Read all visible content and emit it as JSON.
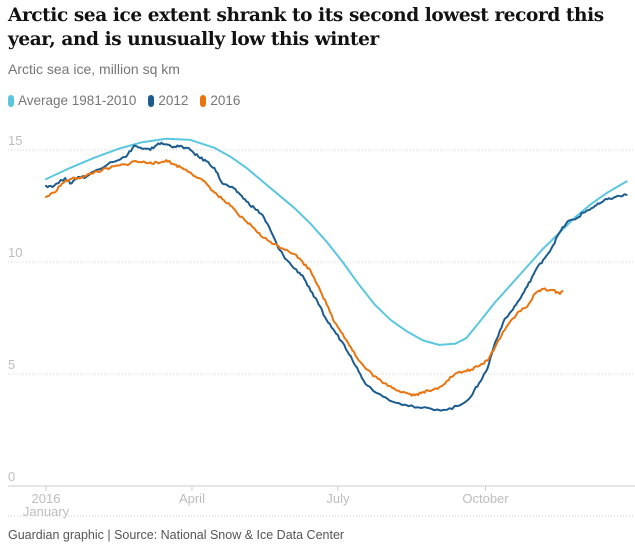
{
  "chart_data": {
    "type": "line",
    "title": "Arctic sea ice extent shrank to its second lowest record this year, and is unusually low this winter",
    "subtitle": "Arctic sea ice, million sq km",
    "xlabel": "",
    "ylabel": "Arctic sea ice, million sq km",
    "x_unit": "day of year",
    "xlim": [
      0,
      366
    ],
    "ylim": [
      0,
      15.5
    ],
    "y_ticks": [
      {
        "value": 0,
        "label": "0"
      },
      {
        "value": 5,
        "label": "5"
      },
      {
        "value": 10,
        "label": "10"
      },
      {
        "value": 15,
        "label": "15"
      }
    ],
    "x_ticks": [
      {
        "value": 0,
        "label": "2016",
        "sublabel": "January"
      },
      {
        "value": 91,
        "label": "April",
        "sublabel": ""
      },
      {
        "value": 182,
        "label": "July",
        "sublabel": ""
      },
      {
        "value": 274,
        "label": "October",
        "sublabel": ""
      }
    ],
    "grid": true,
    "legend_position": "top-left",
    "series": [
      {
        "name": "Average 1981-2010",
        "color": "#5bc6e0",
        "points": [
          [
            0,
            13.7
          ],
          [
            15,
            14.2
          ],
          [
            30,
            14.65
          ],
          [
            45,
            15.05
          ],
          [
            60,
            15.35
          ],
          [
            75,
            15.5
          ],
          [
            90,
            15.45
          ],
          [
            105,
            15.1
          ],
          [
            115,
            14.7
          ],
          [
            125,
            14.2
          ],
          [
            135,
            13.6
          ],
          [
            145,
            13.0
          ],
          [
            155,
            12.4
          ],
          [
            165,
            11.7
          ],
          [
            175,
            10.9
          ],
          [
            185,
            10.0
          ],
          [
            195,
            9.0
          ],
          [
            205,
            8.1
          ],
          [
            215,
            7.4
          ],
          [
            225,
            6.9
          ],
          [
            235,
            6.5
          ],
          [
            245,
            6.3
          ],
          [
            255,
            6.35
          ],
          [
            262,
            6.6
          ],
          [
            270,
            7.3
          ],
          [
            280,
            8.2
          ],
          [
            290,
            9.0
          ],
          [
            300,
            9.8
          ],
          [
            310,
            10.6
          ],
          [
            320,
            11.3
          ],
          [
            330,
            12.0
          ],
          [
            340,
            12.6
          ],
          [
            350,
            13.1
          ],
          [
            362,
            13.6
          ]
        ]
      },
      {
        "name": "2012",
        "color": "#1c5c8e",
        "points": [
          [
            0,
            13.4
          ],
          [
            5,
            13.4
          ],
          [
            12,
            13.75
          ],
          [
            15,
            13.5
          ],
          [
            20,
            13.8
          ],
          [
            25,
            13.8
          ],
          [
            30,
            14.05
          ],
          [
            40,
            14.45
          ],
          [
            50,
            14.7
          ],
          [
            55,
            15.2
          ],
          [
            60,
            15.05
          ],
          [
            65,
            15.0
          ],
          [
            70,
            15.3
          ],
          [
            75,
            15.25
          ],
          [
            80,
            15.15
          ],
          [
            85,
            15.15
          ],
          [
            90,
            15.0
          ],
          [
            95,
            14.7
          ],
          [
            100,
            14.5
          ],
          [
            105,
            14.2
          ],
          [
            110,
            13.5
          ],
          [
            115,
            13.35
          ],
          [
            120,
            13.1
          ],
          [
            125,
            12.7
          ],
          [
            130,
            12.4
          ],
          [
            135,
            12.1
          ],
          [
            140,
            11.4
          ],
          [
            145,
            10.6
          ],
          [
            150,
            10.1
          ],
          [
            155,
            9.7
          ],
          [
            160,
            9.4
          ],
          [
            165,
            8.7
          ],
          [
            170,
            8.1
          ],
          [
            175,
            7.4
          ],
          [
            180,
            6.9
          ],
          [
            185,
            6.4
          ],
          [
            190,
            5.8
          ],
          [
            195,
            5.1
          ],
          [
            200,
            4.5
          ],
          [
            210,
            4.0
          ],
          [
            220,
            3.7
          ],
          [
            230,
            3.5
          ],
          [
            240,
            3.45
          ],
          [
            250,
            3.4
          ],
          [
            258,
            3.6
          ],
          [
            265,
            4.0
          ],
          [
            270,
            4.6
          ],
          [
            275,
            5.2
          ],
          [
            280,
            6.4
          ],
          [
            285,
            7.3
          ],
          [
            290,
            7.8
          ],
          [
            295,
            8.3
          ],
          [
            300,
            8.9
          ],
          [
            305,
            9.6
          ],
          [
            310,
            10.1
          ],
          [
            315,
            10.6
          ],
          [
            320,
            11.3
          ],
          [
            325,
            11.8
          ],
          [
            330,
            11.9
          ],
          [
            335,
            12.2
          ],
          [
            340,
            12.4
          ],
          [
            345,
            12.6
          ],
          [
            350,
            12.8
          ],
          [
            355,
            12.9
          ],
          [
            362,
            13.0
          ]
        ]
      },
      {
        "name": "2016",
        "color": "#e87510",
        "points": [
          [
            0,
            12.9
          ],
          [
            5,
            13.1
          ],
          [
            10,
            13.5
          ],
          [
            15,
            13.7
          ],
          [
            20,
            13.75
          ],
          [
            25,
            13.85
          ],
          [
            30,
            14.0
          ],
          [
            35,
            14.1
          ],
          [
            40,
            14.2
          ],
          [
            45,
            14.3
          ],
          [
            50,
            14.35
          ],
          [
            55,
            14.5
          ],
          [
            60,
            14.45
          ],
          [
            65,
            14.45
          ],
          [
            70,
            14.4
          ],
          [
            75,
            14.55
          ],
          [
            80,
            14.35
          ],
          [
            85,
            14.2
          ],
          [
            90,
            14.0
          ],
          [
            95,
            13.75
          ],
          [
            100,
            13.5
          ],
          [
            105,
            13.1
          ],
          [
            110,
            12.8
          ],
          [
            115,
            12.5
          ],
          [
            120,
            12.1
          ],
          [
            125,
            11.8
          ],
          [
            130,
            11.5
          ],
          [
            135,
            11.1
          ],
          [
            140,
            10.9
          ],
          [
            145,
            10.7
          ],
          [
            150,
            10.55
          ],
          [
            155,
            10.35
          ],
          [
            160,
            10.0
          ],
          [
            165,
            9.6
          ],
          [
            170,
            8.9
          ],
          [
            175,
            8.1
          ],
          [
            180,
            7.3
          ],
          [
            185,
            6.8
          ],
          [
            190,
            6.2
          ],
          [
            195,
            5.6
          ],
          [
            200,
            5.2
          ],
          [
            205,
            4.9
          ],
          [
            210,
            4.6
          ],
          [
            215,
            4.45
          ],
          [
            220,
            4.25
          ],
          [
            225,
            4.15
          ],
          [
            230,
            4.05
          ],
          [
            235,
            4.2
          ],
          [
            240,
            4.25
          ],
          [
            245,
            4.4
          ],
          [
            250,
            4.7
          ],
          [
            255,
            5.0
          ],
          [
            260,
            5.1
          ],
          [
            265,
            5.2
          ],
          [
            270,
            5.35
          ],
          [
            275,
            5.6
          ],
          [
            280,
            6.2
          ],
          [
            285,
            6.9
          ],
          [
            290,
            7.4
          ],
          [
            295,
            7.8
          ],
          [
            300,
            8.0
          ],
          [
            305,
            8.6
          ],
          [
            310,
            8.8
          ],
          [
            315,
            8.75
          ],
          [
            320,
            8.6
          ],
          [
            322,
            8.7
          ]
        ]
      }
    ],
    "source": "Guardian graphic | Source: National Snow & Ice Data Center"
  }
}
